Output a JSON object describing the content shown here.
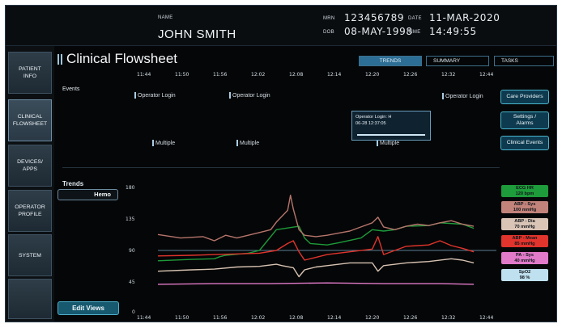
{
  "patient": {
    "name_label": "NAME",
    "name": "JOHN SMITH",
    "mrn_label": "MRN",
    "mrn": "123456789",
    "dob_label": "DOB",
    "dob": "08-MAY-1998",
    "date_label": "DATE",
    "date": "11-MAR-2020",
    "time_label": "TIME",
    "time": "14:49:55"
  },
  "sidebar": {
    "items": [
      {
        "line1": "PATIENT",
        "line2": "INFO"
      },
      {
        "line1": "CLINICAL",
        "line2": "FLOWSHEET"
      },
      {
        "line1": "DEVICES/",
        "line2": "APPS"
      },
      {
        "line1": "OPERATOR",
        "line2": "PROFILE"
      },
      {
        "line1": "SYSTEM",
        "line2": ""
      }
    ]
  },
  "page": {
    "title": "Clinical Flowsheet",
    "tabs": [
      "TRENDS",
      "SUMMARY",
      "TASKS"
    ]
  },
  "timeline": {
    "ticks": [
      "11:44",
      "11:50",
      "11:56",
      "12:02",
      "12:08",
      "12:14",
      "12:20",
      "12:26",
      "12:32",
      "12:44"
    ]
  },
  "events": {
    "label": "Events",
    "operator_login": "Operator Login",
    "multiple": "Multiple",
    "popup_title": "Operator Login: H",
    "popup_time": "06-28 12:37:05"
  },
  "right_buttons": {
    "care_providers": "Care Providers",
    "settings_line1": "Settings /",
    "settings_line2": "Alarms",
    "clinical_events": "Clinical Events"
  },
  "trends": {
    "label": "Trends",
    "selector": "Hemo",
    "edit_views": "Edit Views",
    "y_ticks": [
      "180",
      "135",
      "90",
      "45",
      "0"
    ]
  },
  "parameters": [
    {
      "name": "ECG HR",
      "value": "120 bpm",
      "color": "#1e9b3a"
    },
    {
      "name": "ABP - Sys",
      "value": "100 mmHg",
      "color": "#c2837b"
    },
    {
      "name": "ABP - Dia",
      "value": "70 mmHg",
      "color": "#d9c4b6"
    },
    {
      "name": "ABP - Mean",
      "value": "85 mmHg",
      "color": "#e0342c"
    },
    {
      "name": "PA - Sys",
      "value": "40 mmHg",
      "color": "#e07ac9"
    },
    {
      "name": "SpO2",
      "value": "98 %",
      "color": "#bfe0ef"
    }
  ],
  "chart_data": {
    "type": "line",
    "xlabel": "",
    "ylabel": "",
    "x_ticks": [
      "11:44",
      "11:50",
      "11:56",
      "12:02",
      "12:08",
      "12:14",
      "12:20",
      "12:26",
      "12:32",
      "12:44"
    ],
    "ylim": [
      0,
      180
    ],
    "y_ticks": [
      0,
      45,
      90,
      135,
      180
    ],
    "reference_line": 90,
    "grid": false,
    "series": [
      {
        "name": "ECG HR",
        "color": "#1e9b3a",
        "points": [
          [
            0,
            75
          ],
          [
            6,
            77
          ],
          [
            10,
            78
          ],
          [
            11,
            81
          ],
          [
            12,
            83
          ],
          [
            16,
            86
          ],
          [
            18,
            90
          ],
          [
            21,
            120
          ],
          [
            25,
            125
          ],
          [
            26,
            108
          ],
          [
            27,
            100
          ],
          [
            30,
            98
          ],
          [
            32,
            101
          ],
          [
            36,
            108
          ],
          [
            38,
            120
          ],
          [
            40,
            118
          ],
          [
            42,
            120
          ],
          [
            44,
            125
          ],
          [
            48,
            126
          ],
          [
            50,
            130
          ],
          [
            54,
            128
          ],
          [
            56,
            122
          ]
        ]
      },
      {
        "name": "ABP - Sys",
        "color": "#b6756c",
        "points": [
          [
            0,
            113
          ],
          [
            4,
            108
          ],
          [
            8,
            110
          ],
          [
            10,
            104
          ],
          [
            12,
            112
          ],
          [
            14,
            108
          ],
          [
            16,
            112
          ],
          [
            18,
            116
          ],
          [
            20,
            120
          ],
          [
            21,
            131
          ],
          [
            23,
            148
          ],
          [
            23.5,
            170
          ],
          [
            24,
            150
          ],
          [
            25,
            120
          ],
          [
            26,
            112
          ],
          [
            28,
            110
          ],
          [
            30,
            112
          ],
          [
            32,
            115
          ],
          [
            34,
            118
          ],
          [
            36,
            124
          ],
          [
            38,
            130
          ],
          [
            39,
            138
          ],
          [
            40,
            124
          ],
          [
            42,
            120
          ],
          [
            44,
            125
          ],
          [
            46,
            128
          ],
          [
            48,
            126
          ],
          [
            50,
            130
          ],
          [
            52,
            133
          ],
          [
            54,
            128
          ],
          [
            56,
            125
          ]
        ]
      },
      {
        "name": "ABP - Dia",
        "color": "#d6c2b2",
        "points": [
          [
            0,
            60
          ],
          [
            6,
            62
          ],
          [
            10,
            63
          ],
          [
            14,
            66
          ],
          [
            18,
            67
          ],
          [
            21,
            70
          ],
          [
            22,
            68
          ],
          [
            24,
            65
          ],
          [
            25,
            52
          ],
          [
            26,
            62
          ],
          [
            28,
            66
          ],
          [
            30,
            68
          ],
          [
            34,
            72
          ],
          [
            38,
            72
          ],
          [
            39,
            60
          ],
          [
            40,
            68
          ],
          [
            44,
            72
          ],
          [
            48,
            74
          ],
          [
            52,
            78
          ],
          [
            54,
            76
          ],
          [
            56,
            72
          ]
        ]
      },
      {
        "name": "ABP - Mean",
        "color": "#e0342c",
        "points": [
          [
            0,
            82
          ],
          [
            6,
            83
          ],
          [
            10,
            84
          ],
          [
            14,
            85
          ],
          [
            18,
            86
          ],
          [
            21,
            90
          ],
          [
            23,
            100
          ],
          [
            24,
            104
          ],
          [
            25,
            88
          ],
          [
            26,
            76
          ],
          [
            28,
            80
          ],
          [
            30,
            84
          ],
          [
            34,
            88
          ],
          [
            38,
            92
          ],
          [
            39,
            110
          ],
          [
            40,
            84
          ],
          [
            44,
            96
          ],
          [
            48,
            98
          ],
          [
            50,
            104
          ],
          [
            52,
            97
          ],
          [
            54,
            93
          ],
          [
            56,
            88
          ]
        ]
      },
      {
        "name": "PA - Sys",
        "color": "#e07ac9",
        "points": [
          [
            0,
            41
          ],
          [
            10,
            42
          ],
          [
            20,
            42
          ],
          [
            30,
            43
          ],
          [
            40,
            42
          ],
          [
            50,
            42
          ],
          [
            56,
            41
          ]
        ]
      }
    ]
  }
}
